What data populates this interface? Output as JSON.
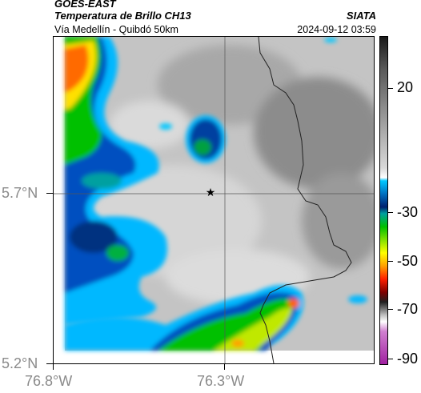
{
  "header": {
    "title": "GOES-EAST",
    "subtitle": "Temperatura de Brillo CH13",
    "region": "Vía Medellín - Quibdó 50km",
    "org": "SIATA",
    "datetime": "2024-09-12 03:59"
  },
  "axes": {
    "lat_ticks": [
      "5.7°N",
      "5.2°N"
    ],
    "lon_ticks": [
      "76.8°W",
      "76.3°W"
    ]
  },
  "colorbar": {
    "labels": [
      "20",
      "-30",
      "-50",
      "-70",
      "-90"
    ]
  },
  "colors": {
    "cold_cloud_blue": "#0040a0",
    "warm_surface_gray": "#c8c8c8",
    "orange_core": "#ff6000"
  }
}
